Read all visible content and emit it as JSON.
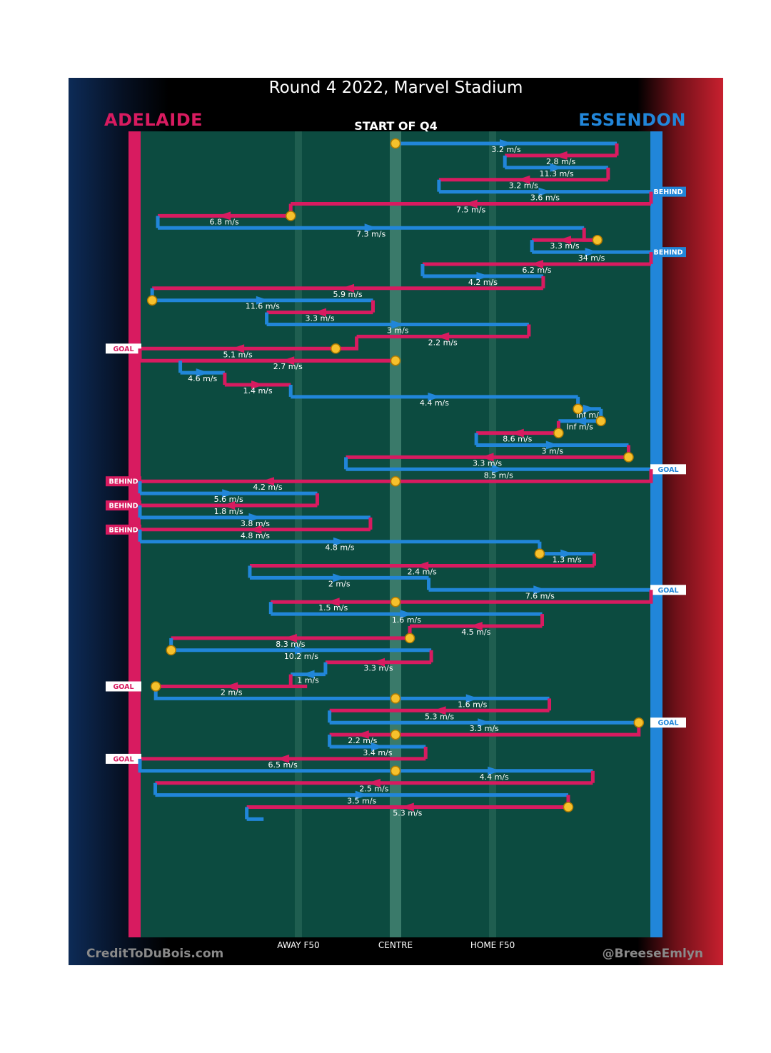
{
  "title": "Round 4 2022, Marvel Stadium",
  "teams": {
    "left": "ADELAIDE",
    "right": "ESSENDON"
  },
  "colors": {
    "adelaide": "#d81b60",
    "essendon": "#2186d9",
    "field": "#0c4b40",
    "ball": "#f6c12c"
  },
  "start_label": "START OF Q4",
  "credits": {
    "left": "CreditToDuBois.com",
    "right": "@BreeseEmlyn"
  },
  "chart_data": {
    "type": "line",
    "title": "Round 4 2022, Marvel Stadium",
    "subtitle": "START OF Q4",
    "xlabel": "",
    "ylabel": "",
    "x_axis": "field position, 0 = Adelaide goal line, 100 = Essendon goal line",
    "xlim": [
      0,
      100
    ],
    "ticks": [
      {
        "label": "AWAY F50",
        "x": 31
      },
      {
        "label": "CENTRE",
        "x": 50
      },
      {
        "label": "HOME F50",
        "x": 69
      }
    ],
    "series_legend": [
      {
        "team": "ADELAIDE",
        "code": "A"
      },
      {
        "team": "ESSENDON",
        "code": "E"
      }
    ],
    "chains": [
      {
        "team": "E",
        "from": 50,
        "to": 93.3,
        "speed": "3.2 m/s",
        "ball": "start",
        "event": null
      },
      {
        "team": "A",
        "from": 93.3,
        "to": 71.4,
        "speed": "2.8 m/s",
        "ball": null,
        "event": null
      },
      {
        "team": "E",
        "from": 71.4,
        "to": 91.6,
        "speed": "11.3 m/s",
        "ball": null,
        "event": null
      },
      {
        "team": "A",
        "from": 91.6,
        "to": 58.5,
        "speed": "3.2 m/s",
        "ball": null,
        "event": null
      },
      {
        "team": "E",
        "from": 58.5,
        "to": 100,
        "speed": "3.6 m/s",
        "ball": null,
        "event": "BEHIND"
      },
      {
        "team": "A",
        "from": 100,
        "to": 29.5,
        "speed": "7.5 m/s",
        "ball": null,
        "event": null
      },
      {
        "team": "A",
        "from": 29.5,
        "to": 3.5,
        "speed": "6.8 m/s",
        "ball": "start",
        "event": null
      },
      {
        "team": "E",
        "from": 3.5,
        "to": 86.9,
        "speed": "7.3 m/s",
        "ball": null,
        "event": null
      },
      {
        "team": "A",
        "from": 89.5,
        "to": 76.7,
        "speed": "3.3 m/s",
        "ball": "start",
        "event": null
      },
      {
        "team": "E",
        "from": 76.7,
        "to": 100,
        "speed": "34 m/s",
        "ball": null,
        "event": "BEHIND"
      },
      {
        "team": "A",
        "from": 100,
        "to": 55.3,
        "speed": "6.2 m/s",
        "ball": null,
        "event": null
      },
      {
        "team": "E",
        "from": 55.3,
        "to": 78.9,
        "speed": "4.2 m/s",
        "ball": null,
        "event": null
      },
      {
        "team": "A",
        "from": 78.9,
        "to": 2.4,
        "speed": "5.9 m/s",
        "ball": null,
        "event": null
      },
      {
        "team": "E",
        "from": 2.4,
        "to": 45.6,
        "speed": "11.6 m/s",
        "ball": "start",
        "event": null
      },
      {
        "team": "A",
        "from": 45.6,
        "to": 24.8,
        "speed": "3.3 m/s",
        "ball": null,
        "event": null
      },
      {
        "team": "E",
        "from": 24.8,
        "to": 76.1,
        "speed": "3 m/s",
        "ball": null,
        "event": null
      },
      {
        "team": "A",
        "from": 76.1,
        "to": 42.4,
        "speed": "2.2 m/s",
        "ball": null,
        "event": null
      },
      {
        "team": "A",
        "from": 38.3,
        "to": 0,
        "speed": "5.1 m/s",
        "ball": "start",
        "event": "GOAL"
      },
      {
        "team": "A",
        "from": 50,
        "to": 7.9,
        "speed": "2.7 m/s",
        "ball": "start",
        "event": null
      },
      {
        "team": "E",
        "from": 7.9,
        "to": 16.6,
        "speed": "4.6 m/s",
        "ball": null,
        "event": null
      },
      {
        "team": "A",
        "from": 16.6,
        "to": 29.5,
        "speed": "1.4 m/s",
        "ball": null,
        "event": null
      },
      {
        "team": "E",
        "from": 29.5,
        "to": 85.7,
        "speed": "4.4 m/s",
        "ball": null,
        "event": null
      },
      {
        "team": "E",
        "from": 85.7,
        "to": 90.2,
        "speed": "Inf m/s",
        "ball": "start",
        "event": null
      },
      {
        "team": "E",
        "from": 90.2,
        "to": 81.9,
        "speed": "Inf m/s",
        "ball": "start",
        "event": null
      },
      {
        "team": "A",
        "from": 81.9,
        "to": 65.8,
        "speed": "8.6 m/s",
        "ball": "start",
        "event": null
      },
      {
        "team": "E",
        "from": 65.8,
        "to": 95.6,
        "speed": "3 m/s",
        "ball": null,
        "event": null
      },
      {
        "team": "A",
        "from": 95.6,
        "to": 40.3,
        "speed": "3.3 m/s",
        "ball": "start",
        "event": null
      },
      {
        "team": "E",
        "from": 40.3,
        "to": 100,
        "speed": "8.5 m/s",
        "ball": null,
        "event": "GOAL"
      },
      {
        "team": "A",
        "from": 50,
        "to": 0,
        "speed": "4.2 m/s",
        "ball": "start",
        "event": "BEHIND"
      },
      {
        "team": "E",
        "from": 0,
        "to": 34.7,
        "speed": "5.6 m/s",
        "ball": null,
        "event": null
      },
      {
        "team": "A",
        "from": 34.7,
        "to": 0,
        "speed": "1.8 m/s",
        "ball": null,
        "event": "BEHIND"
      },
      {
        "team": "E",
        "from": 0,
        "to": 45.1,
        "speed": "3.8 m/s",
        "ball": null,
        "event": null
      },
      {
        "team": "A",
        "from": 45.1,
        "to": 0,
        "speed": "4.8 m/s",
        "ball": null,
        "event": "BEHIND"
      },
      {
        "team": "E",
        "from": 0,
        "to": 78.2,
        "speed": "4.8 m/s",
        "ball": null,
        "event": null
      },
      {
        "team": "E",
        "from": 78.2,
        "to": 88.9,
        "speed": "1.3 m/s",
        "ball": "start",
        "event": null
      },
      {
        "team": "A",
        "from": 88.9,
        "to": 21.5,
        "speed": "2.4 m/s",
        "ball": null,
        "event": null
      },
      {
        "team": "E",
        "from": 21.5,
        "to": 56.5,
        "speed": "2 m/s",
        "ball": null,
        "event": null
      },
      {
        "team": "E",
        "from": 56.5,
        "to": 100,
        "speed": "7.6 m/s",
        "ball": null,
        "event": "GOAL"
      },
      {
        "team": "A",
        "from": 50,
        "to": 25.6,
        "speed": "1.5 m/s",
        "ball": "start",
        "event": null
      },
      {
        "team": "E",
        "from": 25.6,
        "to": 78.7,
        "speed": "1.6 m/s",
        "ball": null,
        "event": null
      },
      {
        "team": "A",
        "from": 78.7,
        "to": 52.8,
        "speed": "4.5 m/s",
        "ball": null,
        "event": null
      },
      {
        "team": "A",
        "from": 52.8,
        "to": 6.1,
        "speed": "8.3 m/s",
        "ball": "start",
        "event": null
      },
      {
        "team": "E",
        "from": 6.1,
        "to": 57.0,
        "speed": "10.2 m/s",
        "ball": "start",
        "event": null
      },
      {
        "team": "A",
        "from": 57.0,
        "to": 36.3,
        "speed": "3.3 m/s",
        "ball": null,
        "event": null
      },
      {
        "team": "E",
        "from": 36.3,
        "to": 29.5,
        "speed": "1 m/s",
        "ball": null,
        "event": null
      },
      {
        "team": "A",
        "from": 32.7,
        "to": 3.1,
        "speed": "2 m/s",
        "ball": "end",
        "event": "GOAL"
      },
      {
        "team": "E",
        "from": 50,
        "to": 80.1,
        "speed": "1.6 m/s",
        "ball": "start",
        "event": null
      },
      {
        "team": "A",
        "from": 80.1,
        "to": 37.1,
        "speed": "5.3 m/s",
        "ball": null,
        "event": null
      },
      {
        "team": "E",
        "from": 37.1,
        "to": 97.6,
        "speed": "3.3 m/s",
        "ball": "end",
        "event": "GOAL"
      },
      {
        "team": "A",
        "from": 50,
        "to": 37.1,
        "speed": "2.2 m/s",
        "ball": "start",
        "event": null
      },
      {
        "team": "E",
        "from": 37.1,
        "to": 55.9,
        "speed": "3.4 m/s",
        "ball": null,
        "event": null
      },
      {
        "team": "A",
        "from": 55.9,
        "to": 0,
        "speed": "6.5 m/s",
        "ball": null,
        "event": "GOAL"
      },
      {
        "team": "E",
        "from": 50,
        "to": 88.6,
        "speed": "4.4 m/s",
        "ball": "start",
        "event": null
      },
      {
        "team": "A",
        "from": 88.6,
        "to": 3.0,
        "speed": "2.5 m/s",
        "ball": null,
        "event": null
      },
      {
        "team": "E",
        "from": 3.0,
        "to": 83.8,
        "speed": "3.5 m/s",
        "ball": null,
        "event": null
      },
      {
        "team": "A",
        "from": 83.8,
        "to": 20.9,
        "speed": "5.3 m/s",
        "ball": "start",
        "event": null
      },
      {
        "team": "E",
        "from": 20.9,
        "to": 24.2,
        "speed": "",
        "ball": null,
        "event": null
      }
    ]
  }
}
